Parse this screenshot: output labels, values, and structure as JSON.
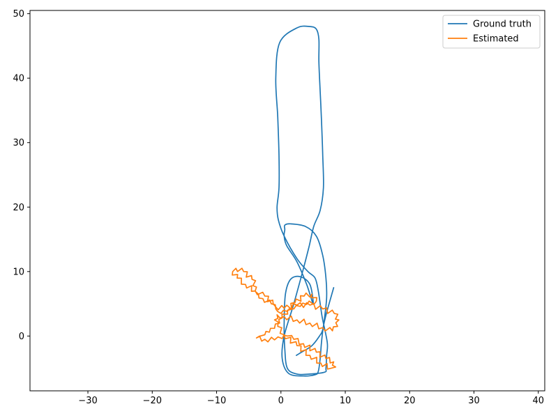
{
  "chart_data": {
    "type": "line",
    "title": "",
    "xlabel": "",
    "ylabel": "",
    "xlim": [
      -39,
      41
    ],
    "ylim": [
      -8.5,
      50.5
    ],
    "xticks": [
      -30,
      -20,
      -10,
      0,
      10,
      20,
      30,
      40
    ],
    "yticks": [
      0,
      10,
      20,
      30,
      40,
      50
    ],
    "grid": false,
    "legend": "top-right",
    "series": [
      {
        "name": "Ground truth",
        "color": "#1f77b4",
        "style": "smooth",
        "x": [
          8.2,
          7.2,
          6.6,
          6.3,
          6.1,
          5.8,
          5.3,
          3.5,
          1.2,
          0.2,
          0.5,
          2.0,
          3.5,
          4.4,
          5.1,
          6.1,
          6.6,
          6.5,
          6.3,
          6.1,
          5.9,
          5.9,
          5.5,
          4.5,
          2.5,
          -0.2,
          -0.8,
          -0.5,
          -0.3,
          -0.3,
          -0.6,
          -0.4,
          0.5,
          2.5,
          4.2,
          5.3,
          5.8,
          6.4,
          7.2,
          7.1,
          7.0,
          6.8,
          4.5,
          2.5,
          1.0,
          0.6,
          0.5,
          0.7,
          1.5,
          3.0,
          4.5,
          5.0,
          4.0,
          2.5,
          0.9,
          0.5,
          0.6,
          0.6,
          1.5,
          3.8,
          5.5,
          6.5,
          7.0,
          7.1,
          6.8,
          6.5,
          6.0,
          4.8,
          3.2,
          2.4
        ],
        "y": [
          7.5,
          4.0,
          1.5,
          -1.0,
          -3.5,
          -5.5,
          -6.0,
          -6.2,
          -5.8,
          -3.5,
          0.0,
          5.0,
          10.5,
          14.0,
          17.0,
          19.5,
          23.0,
          28.0,
          33.5,
          38.0,
          42.5,
          46.0,
          47.6,
          48.0,
          47.8,
          45.5,
          40.0,
          34.0,
          28.0,
          23.0,
          20.0,
          18.0,
          15.5,
          12.0,
          10.0,
          9.0,
          7.0,
          3.0,
          -1.0,
          -3.0,
          -5.0,
          -5.6,
          -5.9,
          -5.9,
          -5.0,
          -2.0,
          2.0,
          6.5,
          8.8,
          9.2,
          8.0,
          5.0,
          8.0,
          11.5,
          14.0,
          15.5,
          16.5,
          17.2,
          17.4,
          17.0,
          15.5,
          12.5,
          9.0,
          6.0,
          3.0,
          1.0,
          0.0,
          -1.5,
          -2.5,
          -3.0
        ]
      },
      {
        "name": "Estimated",
        "color": "#ff7f0e",
        "style": "jagged",
        "x": [
          -3.8,
          -2.5,
          -1.0,
          0.2,
          1.0,
          2.0,
          3.5,
          5.5,
          7.0,
          8.2,
          8.5,
          7.8,
          6.2,
          4.5,
          2.5,
          0.5,
          -0.5,
          -1.0,
          -0.6,
          0.5,
          2.5,
          4.5,
          6.5,
          8.0,
          8.8,
          9.0,
          8.3,
          6.5,
          4.5,
          2.5,
          0.5,
          -0.8,
          -1.2,
          -2.5,
          -4.0,
          -5.5,
          -6.8,
          -7.5,
          -7.0,
          -5.8,
          -4.5,
          -3.8,
          -3.5,
          -2.8,
          -1.5,
          -0.8,
          -0.5,
          0.0,
          1.0,
          2.0,
          3.0,
          4.0,
          5.5,
          4.8,
          3.6,
          2.2,
          1.0,
          0.2,
          -0.2,
          -1.0,
          -1.8,
          -2.5,
          -3.2,
          -3.6
        ],
        "y": [
          -0.3,
          -0.5,
          -0.6,
          -0.4,
          0.0,
          -0.5,
          -1.2,
          -2.5,
          -3.5,
          -4.0,
          -4.8,
          -5.0,
          -4.2,
          -3.0,
          -1.5,
          0.2,
          1.5,
          2.5,
          3.3,
          3.0,
          2.5,
          2.0,
          1.3,
          0.8,
          1.5,
          2.5,
          3.5,
          4.2,
          4.8,
          4.8,
          4.3,
          4.5,
          5.0,
          6.2,
          7.0,
          8.0,
          9.0,
          10.0,
          10.5,
          10.0,
          8.8,
          7.6,
          6.5,
          5.8,
          5.0,
          4.2,
          3.8,
          3.5,
          3.8,
          4.2,
          4.6,
          4.9,
          5.4,
          6.5,
          6.2,
          5.2,
          4.0,
          2.8,
          2.0,
          1.2,
          0.6,
          0.2,
          0.0,
          -0.2
        ]
      }
    ]
  }
}
